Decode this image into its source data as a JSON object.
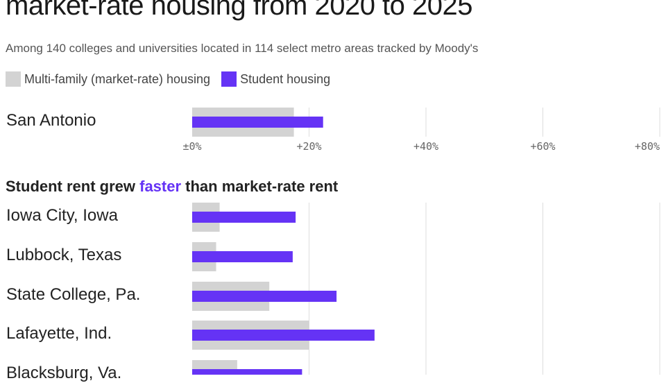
{
  "title": "market-rate housing from 2020 to 2025",
  "subtitle": "Among 140 colleges and universities located in 114 select metro areas tracked by Moody's",
  "legend": [
    {
      "label": "Multi-family (market-rate) housing",
      "color": "#d3d3d3"
    },
    {
      "label": "Student housing",
      "color": "#6533f5"
    }
  ],
  "section2": {
    "prefix": "Student rent grew ",
    "highlight": "faster",
    "suffix": " than market-rate rent"
  },
  "chart_data": {
    "type": "bar",
    "orientation": "horizontal",
    "xlim": [
      0,
      80
    ],
    "ticks": [
      0,
      20,
      40,
      60,
      80
    ],
    "tick_labels": [
      "±0%",
      "+20%",
      "+40%",
      "+60%",
      "+80%"
    ],
    "series_names": [
      "Multi-family (market-rate) housing",
      "Student housing"
    ],
    "colors": {
      "multifamily": "#d3d3d3",
      "student": "#6533f5"
    },
    "groups": [
      {
        "heading": "",
        "rows": [
          {
            "label": "San Antonio",
            "multifamily": 17.4,
            "student": 22.4
          }
        ]
      },
      {
        "heading": "Student rent grew faster than market-rate rent",
        "rows": [
          {
            "label": "Iowa City, Iowa",
            "multifamily": 4.7,
            "student": 17.7
          },
          {
            "label": "Lubbock, Texas",
            "multifamily": 4.1,
            "student": 17.2
          },
          {
            "label": "State College, Pa.",
            "multifamily": 13.2,
            "student": 24.7
          },
          {
            "label": "Lafayette, Ind.",
            "multifamily": 20.0,
            "student": 31.2
          },
          {
            "label": "Blacksburg, Va.",
            "multifamily": 7.7,
            "student": 18.8
          }
        ]
      }
    ]
  }
}
